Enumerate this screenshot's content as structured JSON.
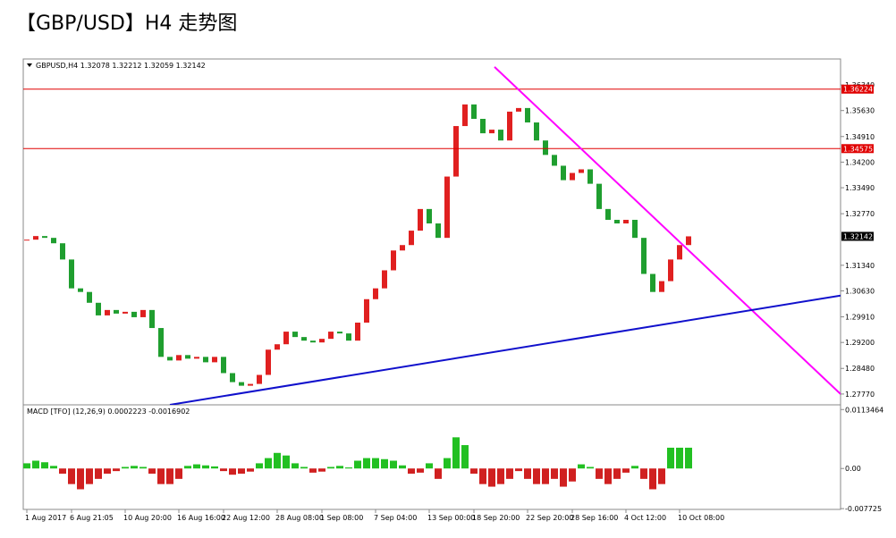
{
  "chart_data": [
    {
      "type": "candlestick",
      "title": "【GBP/USD】H4 走势图",
      "subtitle": "GBPUSD,H4  1.32078 1.32212 1.32059 1.32142",
      "categories": [
        "1 Aug 2017",
        null,
        null,
        null,
        null,
        "6 Aug 21:05",
        null,
        null,
        null,
        null,
        null,
        "10 Aug 20:00",
        null,
        null,
        null,
        null,
        null,
        "16 Aug 16:00",
        null,
        null,
        null,
        null,
        "22 Aug 12:00",
        null,
        null,
        null,
        null,
        null,
        "28 Aug 08:00",
        null,
        null,
        null,
        null,
        "1 Sep 08:00",
        null,
        null,
        null,
        null,
        null,
        "7 Sep 04:00",
        null,
        null,
        null,
        null,
        null,
        "13 Sep 00:00",
        null,
        null,
        null,
        null,
        "18 Sep 20:00",
        null,
        null,
        null,
        null,
        null,
        "22 Sep 20:00",
        null,
        null,
        null,
        null,
        "28 Sep 16:00",
        null,
        null,
        null,
        null,
        null,
        "4 Oct 12:00",
        null,
        null,
        null,
        null,
        null,
        "10 Oct 08:00",
        null
      ],
      "values": [
        1.3205,
        1.3215,
        1.321,
        1.3195,
        1.315,
        1.307,
        1.306,
        1.303,
        1.2995,
        1.301,
        1.3,
        1.3005,
        1.299,
        1.301,
        1.296,
        1.288,
        1.287,
        1.2885,
        1.2875,
        1.288,
        1.2865,
        1.288,
        1.2835,
        1.281,
        1.28,
        1.2805,
        1.283,
        1.29,
        1.2915,
        1.295,
        1.2935,
        1.2925,
        1.292,
        1.293,
        1.295,
        1.2945,
        1.2925,
        1.2975,
        1.304,
        1.307,
        1.312,
        1.3175,
        1.319,
        1.323,
        1.329,
        1.325,
        1.321,
        1.338,
        1.352,
        1.358,
        1.354,
        1.35,
        1.351,
        1.348,
        1.356,
        1.357,
        1.353,
        1.348,
        1.344,
        1.341,
        1.337,
        1.339,
        1.34,
        1.336,
        1.329,
        1.326,
        1.325,
        1.326,
        1.321,
        1.311,
        1.306,
        1.309,
        1.315,
        1.319,
        1.32142
      ],
      "up_color": "#e02020",
      "down_color": "#1f9e2f",
      "ylim": [
        1.2747,
        1.3706
      ],
      "yticks": [
        {
          "value": 1.3634,
          "label": "1.36340"
        },
        {
          "value": 1.3563,
          "label": "1.35630"
        },
        {
          "value": 1.3491,
          "label": "1.34910"
        },
        {
          "value": 1.342,
          "label": "1.34200"
        },
        {
          "value": 1.3349,
          "label": "1.33490"
        },
        {
          "value": 1.3277,
          "label": "1.32770"
        },
        {
          "value": 1.3134,
          "label": "1.31340"
        },
        {
          "value": 1.3063,
          "label": "1.30630"
        },
        {
          "value": 1.2991,
          "label": "1.29910"
        },
        {
          "value": 1.292,
          "label": "1.29200"
        },
        {
          "value": 1.2848,
          "label": "1.28480"
        },
        {
          "value": 1.2777,
          "label": "1.27770"
        }
      ],
      "levels": [
        1.36224,
        1.34575
      ],
      "level_color": "#e00000",
      "last_price": 1.32142,
      "trendlines": [
        {
          "color": "#ff00ff",
          "from": [
            52.3,
            1.3684
          ],
          "to": [
            91,
            1.2777
          ]
        },
        {
          "color": "#1010cc",
          "from": [
            16,
            1.2747
          ],
          "to": [
            91,
            1.305
          ]
        }
      ]
    },
    {
      "type": "bar",
      "title": "MACD [TFO] (12,26,9) 0.0002223 -0.0016902",
      "values": [
        0.001,
        0.0015,
        0.0012,
        0.0005,
        -0.001,
        -0.003,
        -0.004,
        -0.003,
        -0.002,
        -0.001,
        -0.0005,
        0.0003,
        0.0005,
        0.0003,
        -0.001,
        -0.003,
        -0.003,
        -0.002,
        0.0005,
        0.0008,
        0.0006,
        0.0004,
        -0.0005,
        -0.0012,
        -0.001,
        -0.0006,
        0.001,
        0.002,
        0.003,
        0.0025,
        0.001,
        0.0003,
        -0.0008,
        -0.0006,
        0.0003,
        0.0005,
        0.0002,
        0.0015,
        0.002,
        0.002,
        0.0018,
        0.0015,
        0.0006,
        -0.001,
        -0.0008,
        0.001,
        -0.002,
        0.002,
        0.006,
        0.0045,
        -0.001,
        -0.003,
        -0.0035,
        -0.003,
        -0.002,
        -0.0005,
        -0.002,
        -0.003,
        -0.003,
        -0.002,
        -0.0035,
        -0.0025,
        0.0008,
        0.0003,
        -0.002,
        -0.003,
        -0.002,
        -0.0008,
        0.0005,
        -0.002,
        -0.004,
        -0.003,
        0.004,
        0.004,
        0.004
      ],
      "up_color": "#22c022",
      "down_color": "#d02020",
      "ylim": [
        -0.007875,
        0.01225
      ],
      "yticks": [
        0.0113464,
        {
          "value": 0,
          "label": "0.00"
        },
        -0.007725
      ]
    }
  ]
}
